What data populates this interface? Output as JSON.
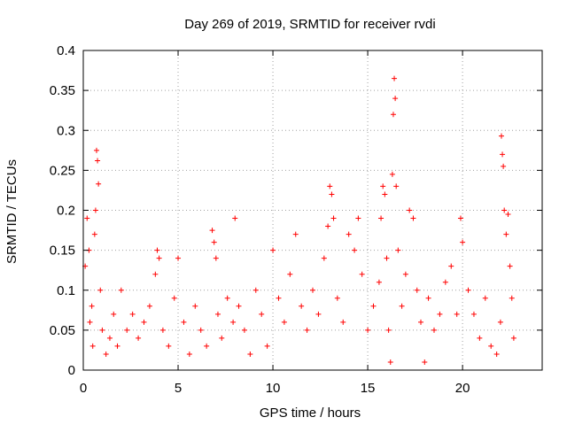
{
  "chart_data": {
    "type": "scatter",
    "title": "Day 269 of 2019, SRMTID for receiver rvdi",
    "xlabel": "GPS time / hours",
    "ylabel": "SRMTID / TECUs",
    "xlim": [
      0,
      24.2
    ],
    "ylim": [
      0,
      0.4
    ],
    "xticks": [
      0,
      5,
      10,
      15,
      20
    ],
    "xtick_labels": [
      "0",
      "5",
      "10",
      "15",
      "20"
    ],
    "yticks": [
      0,
      0.05,
      0.1,
      0.15,
      0.2,
      0.25,
      0.3,
      0.35,
      0.4
    ],
    "ytick_labels": [
      "0",
      "0.05",
      "0.1",
      "0.15",
      "0.2",
      "0.25",
      "0.3",
      "0.35",
      "0.4"
    ],
    "grid": true,
    "marker": "+",
    "color": "#ff0000",
    "series": [
      {
        "name": "SRMTID",
        "x": [
          0.1,
          0.2,
          0.3,
          0.35,
          0.45,
          0.5,
          0.6,
          0.65,
          0.7,
          0.75,
          0.8,
          0.9,
          1.0,
          1.2,
          1.4,
          1.6,
          1.8,
          2.0,
          2.3,
          2.6,
          2.9,
          3.2,
          3.5,
          3.8,
          3.9,
          4.0,
          4.2,
          4.5,
          4.8,
          5.0,
          5.3,
          5.6,
          5.9,
          6.2,
          6.5,
          6.8,
          6.9,
          7.0,
          7.1,
          7.3,
          7.6,
          7.9,
          8.0,
          8.2,
          8.5,
          8.8,
          9.1,
          9.4,
          9.7,
          10.0,
          10.3,
          10.6,
          10.9,
          11.2,
          11.5,
          11.8,
          12.1,
          12.4,
          12.7,
          12.9,
          13.0,
          13.1,
          13.2,
          13.4,
          13.7,
          14.0,
          14.3,
          14.5,
          14.7,
          15.0,
          15.3,
          15.6,
          15.7,
          15.8,
          15.9,
          16.0,
          16.1,
          16.2,
          16.3,
          16.35,
          16.4,
          16.45,
          16.5,
          16.6,
          16.8,
          17.0,
          17.2,
          17.4,
          17.6,
          17.8,
          18.0,
          18.2,
          18.5,
          18.8,
          19.1,
          19.4,
          19.7,
          19.9,
          20.0,
          20.3,
          20.6,
          20.9,
          21.2,
          21.5,
          21.8,
          22.0,
          22.05,
          22.1,
          22.15,
          22.2,
          22.3,
          22.4,
          22.5,
          22.6,
          22.7
        ],
        "y": [
          0.13,
          0.19,
          0.15,
          0.06,
          0.08,
          0.03,
          0.17,
          0.2,
          0.275,
          0.262,
          0.233,
          0.1,
          0.05,
          0.02,
          0.04,
          0.07,
          0.03,
          0.1,
          0.05,
          0.07,
          0.04,
          0.06,
          0.08,
          0.12,
          0.15,
          0.14,
          0.05,
          0.03,
          0.09,
          0.14,
          0.06,
          0.02,
          0.08,
          0.05,
          0.03,
          0.175,
          0.16,
          0.14,
          0.07,
          0.04,
          0.09,
          0.06,
          0.19,
          0.08,
          0.05,
          0.02,
          0.1,
          0.07,
          0.03,
          0.15,
          0.09,
          0.06,
          0.12,
          0.17,
          0.08,
          0.05,
          0.1,
          0.07,
          0.14,
          0.18,
          0.23,
          0.22,
          0.19,
          0.09,
          0.06,
          0.17,
          0.15,
          0.19,
          0.12,
          0.05,
          0.08,
          0.11,
          0.19,
          0.23,
          0.22,
          0.14,
          0.05,
          0.01,
          0.245,
          0.32,
          0.365,
          0.34,
          0.23,
          0.15,
          0.08,
          0.12,
          0.2,
          0.19,
          0.1,
          0.06,
          0.01,
          0.09,
          0.05,
          0.07,
          0.11,
          0.13,
          0.07,
          0.19,
          0.16,
          0.1,
          0.07,
          0.04,
          0.09,
          0.03,
          0.02,
          0.06,
          0.293,
          0.27,
          0.255,
          0.2,
          0.17,
          0.195,
          0.13,
          0.09,
          0.04
        ]
      }
    ]
  }
}
